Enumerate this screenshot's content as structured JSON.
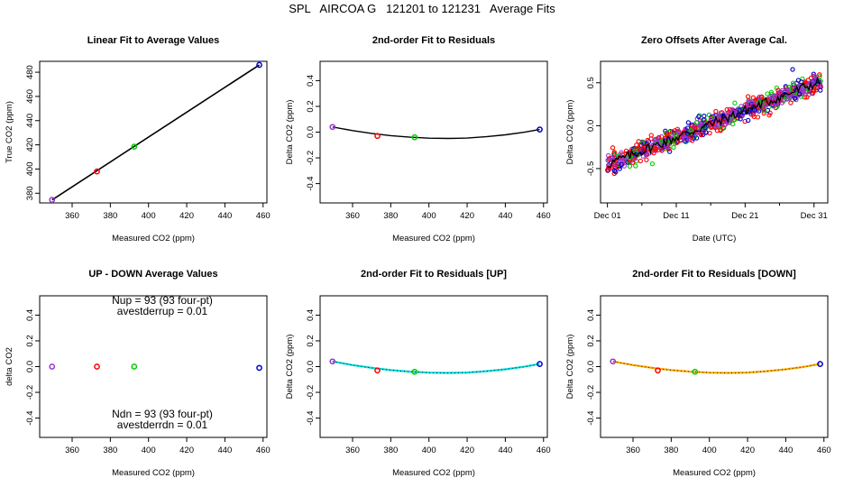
{
  "main_title": "SPL   AIRCOA G   121201 to 121231   Average Fits",
  "colors": {
    "purple": "#9933cc",
    "red": "#ff0000",
    "green": "#00cc00",
    "blue": "#0000cc",
    "cyan": "#00dddd",
    "orange": "#ffaa00",
    "black": "#000000"
  },
  "chart_data": [
    {
      "id": "linear",
      "type": "scatter",
      "title": "Linear Fit to Average Values",
      "xlabel": "Measured CO2 (ppm)",
      "ylabel": "True CO2 (ppm)",
      "xlim": [
        343,
        462
      ],
      "ylim": [
        372,
        489
      ],
      "xticks": [
        360,
        380,
        400,
        420,
        440,
        460
      ],
      "yticks": [
        380,
        400,
        420,
        440,
        460,
        480
      ],
      "points": [
        {
          "x": 349.5,
          "y": 374.5,
          "color": "purple"
        },
        {
          "x": 373,
          "y": 398,
          "color": "red"
        },
        {
          "x": 392.5,
          "y": 418.5,
          "color": "green"
        },
        {
          "x": 458,
          "y": 486,
          "color": "blue"
        }
      ],
      "line": {
        "x": [
          349.5,
          458
        ],
        "y": [
          374.5,
          486
        ],
        "color": "black"
      }
    },
    {
      "id": "resid",
      "type": "scatter",
      "title": "2nd-order Fit to Residuals",
      "xlabel": "Measured CO2 (ppm)",
      "ylabel": "Delta CO2 (ppm)",
      "xlim": [
        343,
        462
      ],
      "ylim": [
        -0.55,
        0.55
      ],
      "xticks": [
        360,
        380,
        400,
        420,
        440,
        460
      ],
      "yticks": [
        -0.4,
        -0.2,
        0.0,
        0.2,
        0.4
      ],
      "points": [
        {
          "x": 349.5,
          "y": 0.04,
          "color": "purple"
        },
        {
          "x": 373,
          "y": -0.03,
          "color": "red"
        },
        {
          "x": 392.5,
          "y": -0.04,
          "color": "green"
        },
        {
          "x": 458,
          "y": 0.02,
          "color": "blue"
        }
      ],
      "curve": {
        "x": [
          349.5,
          360,
          370,
          380,
          390,
          400,
          410,
          420,
          430,
          440,
          450,
          458
        ],
        "y": [
          0.04,
          0.012,
          -0.01,
          -0.027,
          -0.039,
          -0.047,
          -0.049,
          -0.046,
          -0.036,
          -0.021,
          -0.001,
          0.02
        ],
        "color": "black"
      }
    },
    {
      "id": "zero",
      "type": "scatter",
      "title": "Zero Offsets After Average Cal.",
      "xlabel": "Date (UTC)",
      "ylabel": "Delta CO2 (ppm)",
      "xlim": [
        -1,
        32
      ],
      "ylim": [
        -0.9,
        0.75
      ],
      "xticks": [
        0,
        10,
        20,
        30
      ],
      "xticklabels": [
        "Dec 01",
        "Dec 11",
        "Dec 21",
        "Dec 31"
      ],
      "yticks": [
        -0.5,
        0.0,
        0.5
      ],
      "trend": {
        "start": -0.45,
        "end": 0.52
      }
    },
    {
      "id": "updown",
      "type": "scatter",
      "title": "UP - DOWN Average Values",
      "xlabel": "Measured CO2 (ppm)",
      "ylabel": "delta CO2",
      "xlim": [
        343,
        462
      ],
      "ylim": [
        -0.55,
        0.55
      ],
      "xticks": [
        360,
        380,
        400,
        420,
        440,
        460
      ],
      "yticks": [
        -0.4,
        -0.2,
        0.0,
        0.2,
        0.4
      ],
      "points": [
        {
          "x": 349.5,
          "y": 0.0,
          "color": "purple"
        },
        {
          "x": 373,
          "y": 0.0,
          "color": "red"
        },
        {
          "x": 392.5,
          "y": 0.0,
          "color": "green"
        },
        {
          "x": 458,
          "y": -0.01,
          "color": "blue"
        }
      ],
      "annotations": [
        "Nup = 93 (93 four-pt)",
        "avestderrup =  0.01",
        "Ndn = 93 (93 four-pt)",
        "avestderrdn =  0.01"
      ]
    },
    {
      "id": "resid_up",
      "type": "scatter",
      "title": "2nd-order Fit to Residuals [UP]",
      "xlabel": "Measured CO2 (ppm)",
      "ylabel": "Delta CO2 (ppm)",
      "xlim": [
        343,
        462
      ],
      "ylim": [
        -0.55,
        0.55
      ],
      "xticks": [
        360,
        380,
        400,
        420,
        440,
        460
      ],
      "yticks": [
        -0.4,
        -0.2,
        0.0,
        0.2,
        0.4
      ],
      "points": [
        {
          "x": 349.5,
          "y": 0.04,
          "color": "purple"
        },
        {
          "x": 373,
          "y": -0.03,
          "color": "red"
        },
        {
          "x": 392.5,
          "y": -0.04,
          "color": "green"
        },
        {
          "x": 458,
          "y": 0.02,
          "color": "blue"
        }
      ],
      "curve": {
        "x": [
          349.5,
          360,
          370,
          380,
          390,
          400,
          410,
          420,
          430,
          440,
          450,
          458
        ],
        "y": [
          0.04,
          0.012,
          -0.01,
          -0.027,
          -0.039,
          -0.047,
          -0.049,
          -0.046,
          -0.036,
          -0.021,
          -0.001,
          0.02
        ],
        "color": "cyan"
      }
    },
    {
      "id": "resid_down",
      "type": "scatter",
      "title": "2nd-order Fit to Residuals [DOWN]",
      "xlabel": "Measured CO2 (ppm)",
      "ylabel": "Delta CO2 (ppm)",
      "xlim": [
        343,
        462
      ],
      "ylim": [
        -0.55,
        0.55
      ],
      "xticks": [
        360,
        380,
        400,
        420,
        440,
        460
      ],
      "yticks": [
        -0.4,
        -0.2,
        0.0,
        0.2,
        0.4
      ],
      "points": [
        {
          "x": 349.5,
          "y": 0.04,
          "color": "purple"
        },
        {
          "x": 373,
          "y": -0.03,
          "color": "red"
        },
        {
          "x": 392.5,
          "y": -0.04,
          "color": "green"
        },
        {
          "x": 458,
          "y": 0.02,
          "color": "blue"
        }
      ],
      "curve": {
        "x": [
          349.5,
          360,
          370,
          380,
          390,
          400,
          410,
          420,
          430,
          440,
          450,
          458
        ],
        "y": [
          0.04,
          0.012,
          -0.01,
          -0.027,
          -0.039,
          -0.047,
          -0.049,
          -0.046,
          -0.036,
          -0.021,
          -0.001,
          0.02
        ],
        "color": "orange"
      }
    }
  ]
}
